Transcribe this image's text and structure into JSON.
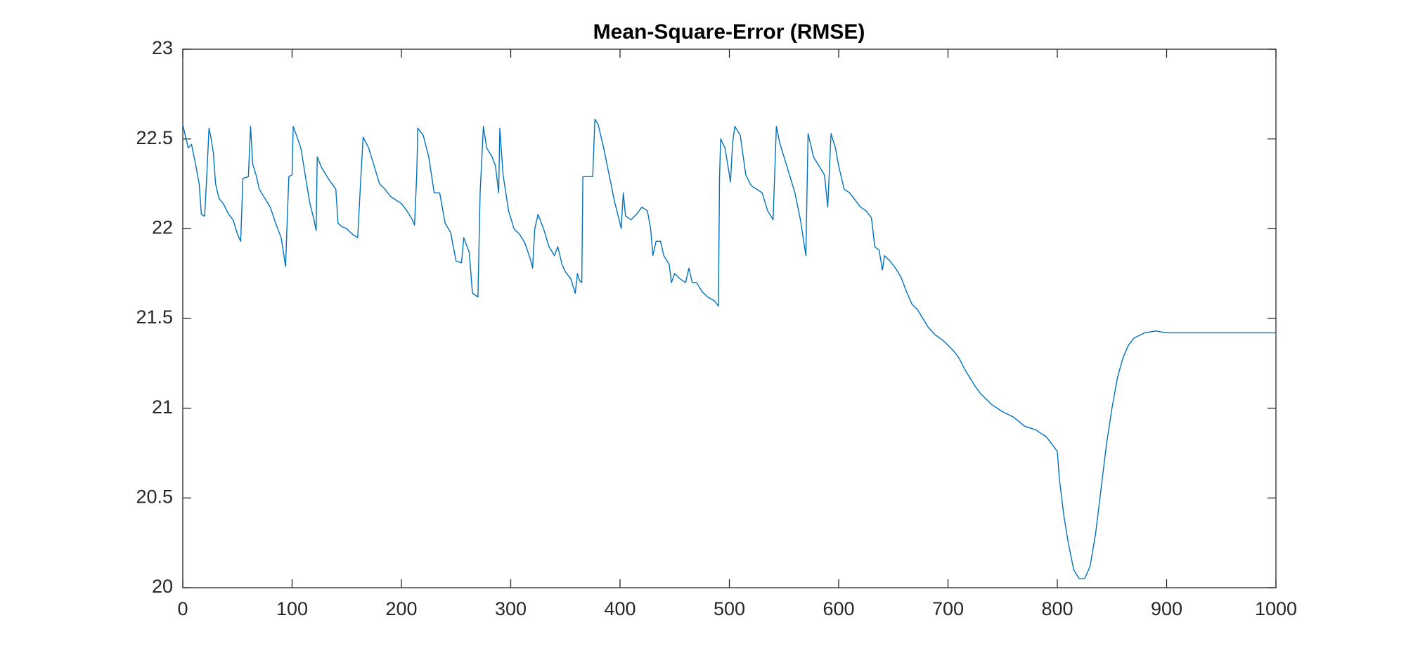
{
  "chart_data": {
    "type": "line",
    "title": "Mean-Square-Error (RMSE)",
    "color": "#0072bd",
    "xlim": [
      0,
      1000
    ],
    "xticks": [
      0,
      100,
      200,
      300,
      400,
      500,
      600,
      700,
      800,
      900,
      1000
    ],
    "ylim": [
      20,
      23
    ],
    "yticks": [
      20,
      20.5,
      21,
      21.5,
      22,
      22.5,
      23
    ],
    "grid": false,
    "x": [
      0,
      3,
      5,
      8,
      12,
      15,
      17,
      20,
      22,
      24,
      26,
      28,
      30,
      33,
      37,
      42,
      46,
      50,
      53,
      55,
      60,
      62,
      64,
      67,
      70,
      75,
      80,
      85,
      90,
      94,
      97,
      100,
      101,
      104,
      108,
      112,
      116,
      120,
      122,
      123,
      127,
      133,
      140,
      142,
      146,
      150,
      155,
      160,
      163,
      165,
      170,
      175,
      180,
      185,
      190,
      195,
      200,
      205,
      210,
      212,
      214,
      215,
      220,
      225,
      230,
      235,
      240,
      245,
      250,
      255,
      257,
      262,
      265,
      270,
      272,
      275,
      278,
      283,
      286,
      289,
      290,
      293,
      298,
      303,
      308,
      313,
      318,
      320,
      322,
      325,
      330,
      335,
      340,
      343,
      347,
      350,
      355,
      359,
      361,
      363,
      365,
      366,
      375,
      377,
      380,
      385,
      390,
      395,
      400,
      401,
      403,
      405,
      410,
      415,
      420,
      425,
      428,
      430,
      433,
      437,
      440,
      445,
      447,
      450,
      455,
      460,
      463,
      466,
      470,
      475,
      480,
      486,
      490,
      491,
      492,
      496,
      500,
      501,
      503,
      505,
      510,
      515,
      520,
      525,
      530,
      535,
      540,
      543,
      546,
      550,
      555,
      560,
      565,
      570,
      572,
      577,
      582,
      587,
      590,
      593,
      597,
      600,
      605,
      610,
      615,
      620,
      625,
      630,
      633,
      637,
      640,
      642,
      647,
      652,
      657,
      662,
      667,
      672,
      677,
      682,
      688,
      695,
      700,
      705,
      710,
      715,
      720,
      725,
      730,
      740,
      750,
      760,
      770,
      780,
      790,
      795,
      800,
      802,
      806,
      810,
      815,
      820,
      825,
      830,
      835,
      840,
      845,
      850,
      855,
      860,
      865,
      870,
      880,
      890,
      900,
      1000
    ],
    "values": [
      22.58,
      22.5,
      22.45,
      22.47,
      22.35,
      22.25,
      22.08,
      22.07,
      22.3,
      22.56,
      22.5,
      22.42,
      22.25,
      22.17,
      22.14,
      22.08,
      22.05,
      21.97,
      21.93,
      22.28,
      22.29,
      22.57,
      22.36,
      22.3,
      22.22,
      22.17,
      22.12,
      22.03,
      21.95,
      21.79,
      22.29,
      22.3,
      22.57,
      22.52,
      22.45,
      22.3,
      22.15,
      22.05,
      21.99,
      22.4,
      22.34,
      22.28,
      22.22,
      22.03,
      22.01,
      22.0,
      21.97,
      21.95,
      22.3,
      22.51,
      22.45,
      22.35,
      22.25,
      22.22,
      22.18,
      22.16,
      22.14,
      22.1,
      22.05,
      22.02,
      22.3,
      22.56,
      22.52,
      22.4,
      22.2,
      22.2,
      22.03,
      21.98,
      21.82,
      21.81,
      21.95,
      21.87,
      21.64,
      21.62,
      22.2,
      22.57,
      22.45,
      22.4,
      22.35,
      22.2,
      22.56,
      22.3,
      22.1,
      22.0,
      21.97,
      21.92,
      21.83,
      21.78,
      22.0,
      22.08,
      22.0,
      21.9,
      21.85,
      21.9,
      21.8,
      21.76,
      21.72,
      21.64,
      21.75,
      21.71,
      21.7,
      22.29,
      22.29,
      22.61,
      22.58,
      22.45,
      22.3,
      22.15,
      22.03,
      22.0,
      22.2,
      22.07,
      22.05,
      22.08,
      22.12,
      22.1,
      22.0,
      21.85,
      21.93,
      21.93,
      21.85,
      21.8,
      21.7,
      21.75,
      21.72,
      21.7,
      21.78,
      21.7,
      21.7,
      21.65,
      21.62,
      21.6,
      21.57,
      22.28,
      22.5,
      22.45,
      22.3,
      22.26,
      22.48,
      22.57,
      22.52,
      22.3,
      22.24,
      22.22,
      22.2,
      22.1,
      22.05,
      22.57,
      22.48,
      22.4,
      22.3,
      22.2,
      22.05,
      21.85,
      22.53,
      22.4,
      22.35,
      22.3,
      22.12,
      22.53,
      22.45,
      22.35,
      22.22,
      22.2,
      22.16,
      22.12,
      22.1,
      22.06,
      21.9,
      21.88,
      21.77,
      21.85,
      21.82,
      21.78,
      21.73,
      21.65,
      21.58,
      21.55,
      21.5,
      21.45,
      21.41,
      21.38,
      21.35,
      21.32,
      21.28,
      21.22,
      21.17,
      21.12,
      21.08,
      21.02,
      20.98,
      20.95,
      20.9,
      20.88,
      20.84,
      20.8,
      20.76,
      20.6,
      20.4,
      20.25,
      20.1,
      20.05,
      20.05,
      20.12,
      20.3,
      20.55,
      20.8,
      21.0,
      21.17,
      21.28,
      21.35,
      21.39,
      21.42,
      21.43,
      21.42,
      21.42
    ]
  }
}
